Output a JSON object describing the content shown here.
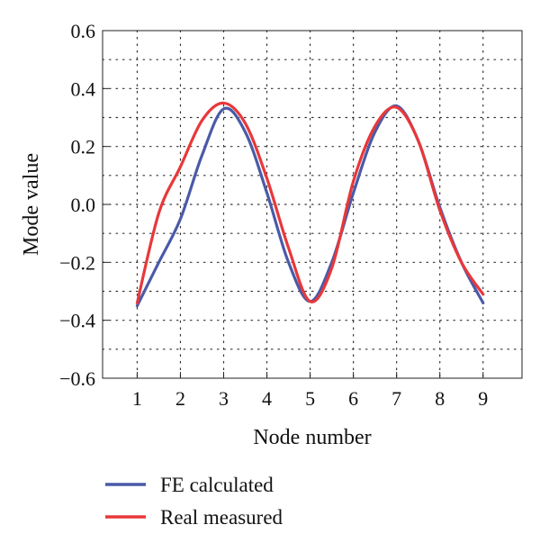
{
  "chart_data": {
    "type": "line",
    "title": "",
    "xlabel": "Node number",
    "ylabel": "Mode value",
    "xlim": [
      0.2,
      9.9
    ],
    "ylim": [
      -0.6,
      0.6
    ],
    "x_ticks": [
      1,
      2,
      3,
      4,
      5,
      6,
      7,
      8,
      9
    ],
    "x_tick_labels": [
      "1",
      "2",
      "3",
      "4",
      "5",
      "6",
      "7",
      "8",
      "9"
    ],
    "y_ticks": [
      -0.6,
      -0.4,
      -0.2,
      0.0,
      0.2,
      0.4,
      0.6
    ],
    "y_tick_labels": [
      "−0.6",
      "−0.4",
      "−0.2",
      "0.0",
      "0.2",
      "0.4",
      "0.6"
    ],
    "grid": "dotted",
    "legend_position": "bottom-left",
    "series": [
      {
        "name": "FE calculated",
        "color": "#4a5aa8",
        "x": [
          1,
          1.5,
          2,
          2.5,
          3,
          3.5,
          4,
          4.5,
          5,
          5.5,
          6,
          6.5,
          7,
          7.5,
          8,
          8.5,
          9
        ],
        "values": [
          -0.35,
          -0.2,
          -0.05,
          0.17,
          0.33,
          0.25,
          0.04,
          -0.2,
          -0.335,
          -0.2,
          0.04,
          0.25,
          0.34,
          0.22,
          -0.01,
          -0.2,
          -0.34
        ]
      },
      {
        "name": "Real measured",
        "color": "#e8383a",
        "x": [
          1,
          1.5,
          2,
          2.5,
          3,
          3.5,
          4,
          4.5,
          5,
          5.5,
          6,
          6.5,
          7,
          7.5,
          8,
          8.5,
          9
        ],
        "values": [
          -0.34,
          -0.03,
          0.13,
          0.29,
          0.35,
          0.28,
          0.09,
          -0.15,
          -0.335,
          -0.22,
          0.08,
          0.27,
          0.335,
          0.22,
          -0.02,
          -0.2,
          -0.31
        ]
      }
    ]
  }
}
